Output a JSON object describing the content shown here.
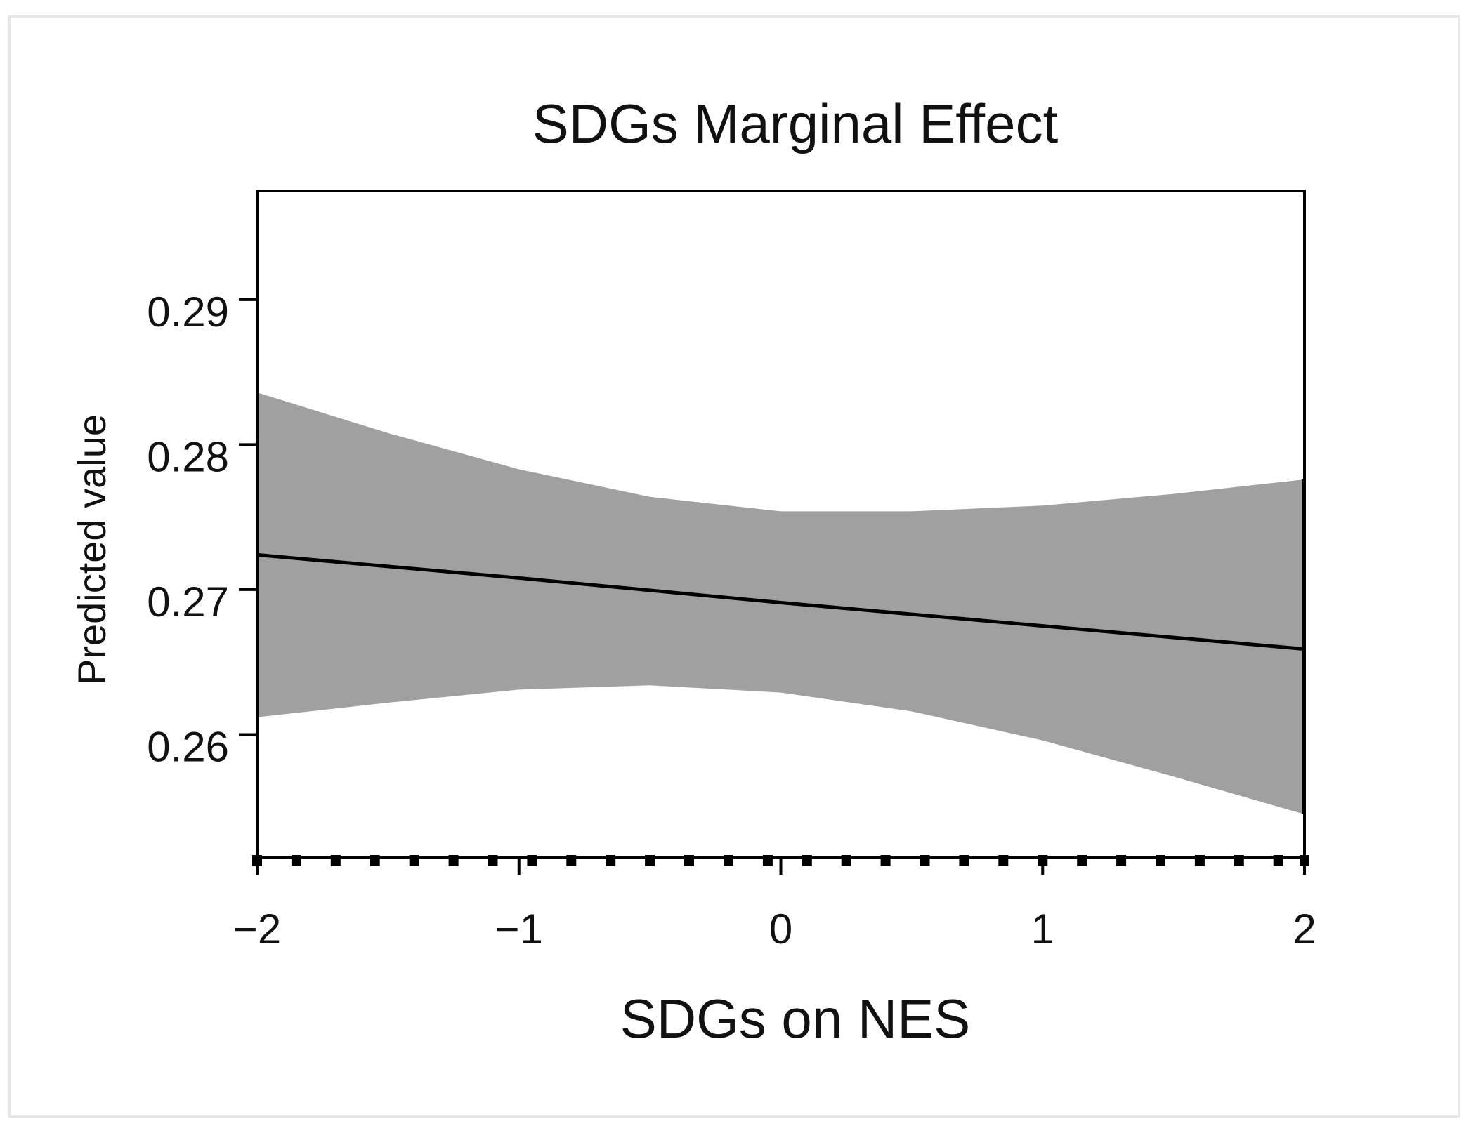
{
  "chart_data": {
    "type": "line",
    "title": "SDGs Marginal Effect",
    "xlabel": "SDGs on NES",
    "ylabel": "Predicted value",
    "xlim": [
      -2,
      2
    ],
    "ylim": [
      0.2515,
      0.2975
    ],
    "x_ticks": [
      -2,
      -1,
      0,
      1,
      2
    ],
    "x_tick_labels": [
      "−2",
      "−1",
      "0",
      "1",
      "2"
    ],
    "y_ticks": [
      0.26,
      0.27,
      0.28,
      0.29
    ],
    "y_tick_labels": [
      "0.26",
      "0.27",
      "0.28",
      "0.29"
    ],
    "grid": false,
    "series": [
      {
        "name": "Predicted value",
        "x": [
          -2,
          -1,
          0,
          1,
          2
        ],
        "values": [
          0.2724,
          0.2708,
          0.2691,
          0.2675,
          0.2659
        ],
        "color": "#000000"
      }
    ],
    "confidence_band": {
      "x": [
        -2,
        -1.5,
        -1,
        -0.5,
        0,
        0.5,
        1,
        1.5,
        2
      ],
      "upper": [
        0.2836,
        0.2808,
        0.2783,
        0.2764,
        0.2754,
        0.2754,
        0.2758,
        0.2766,
        0.2776
      ],
      "lower": [
        0.2612,
        0.2622,
        0.2631,
        0.2634,
        0.2629,
        0.2616,
        0.2596,
        0.2571,
        0.2545
      ],
      "color": "#a0a0a0"
    },
    "rug": {
      "x": [
        -2,
        -1.85,
        -1.7,
        -1.55,
        -1.4,
        -1.25,
        -1.1,
        -0.95,
        -0.8,
        -0.65,
        -0.5,
        -0.35,
        -0.2,
        -0.05,
        0.1,
        0.25,
        0.4,
        0.55,
        0.7,
        0.85,
        1.0,
        1.15,
        1.3,
        1.45,
        1.6,
        1.75,
        1.9,
        2.0
      ]
    }
  }
}
